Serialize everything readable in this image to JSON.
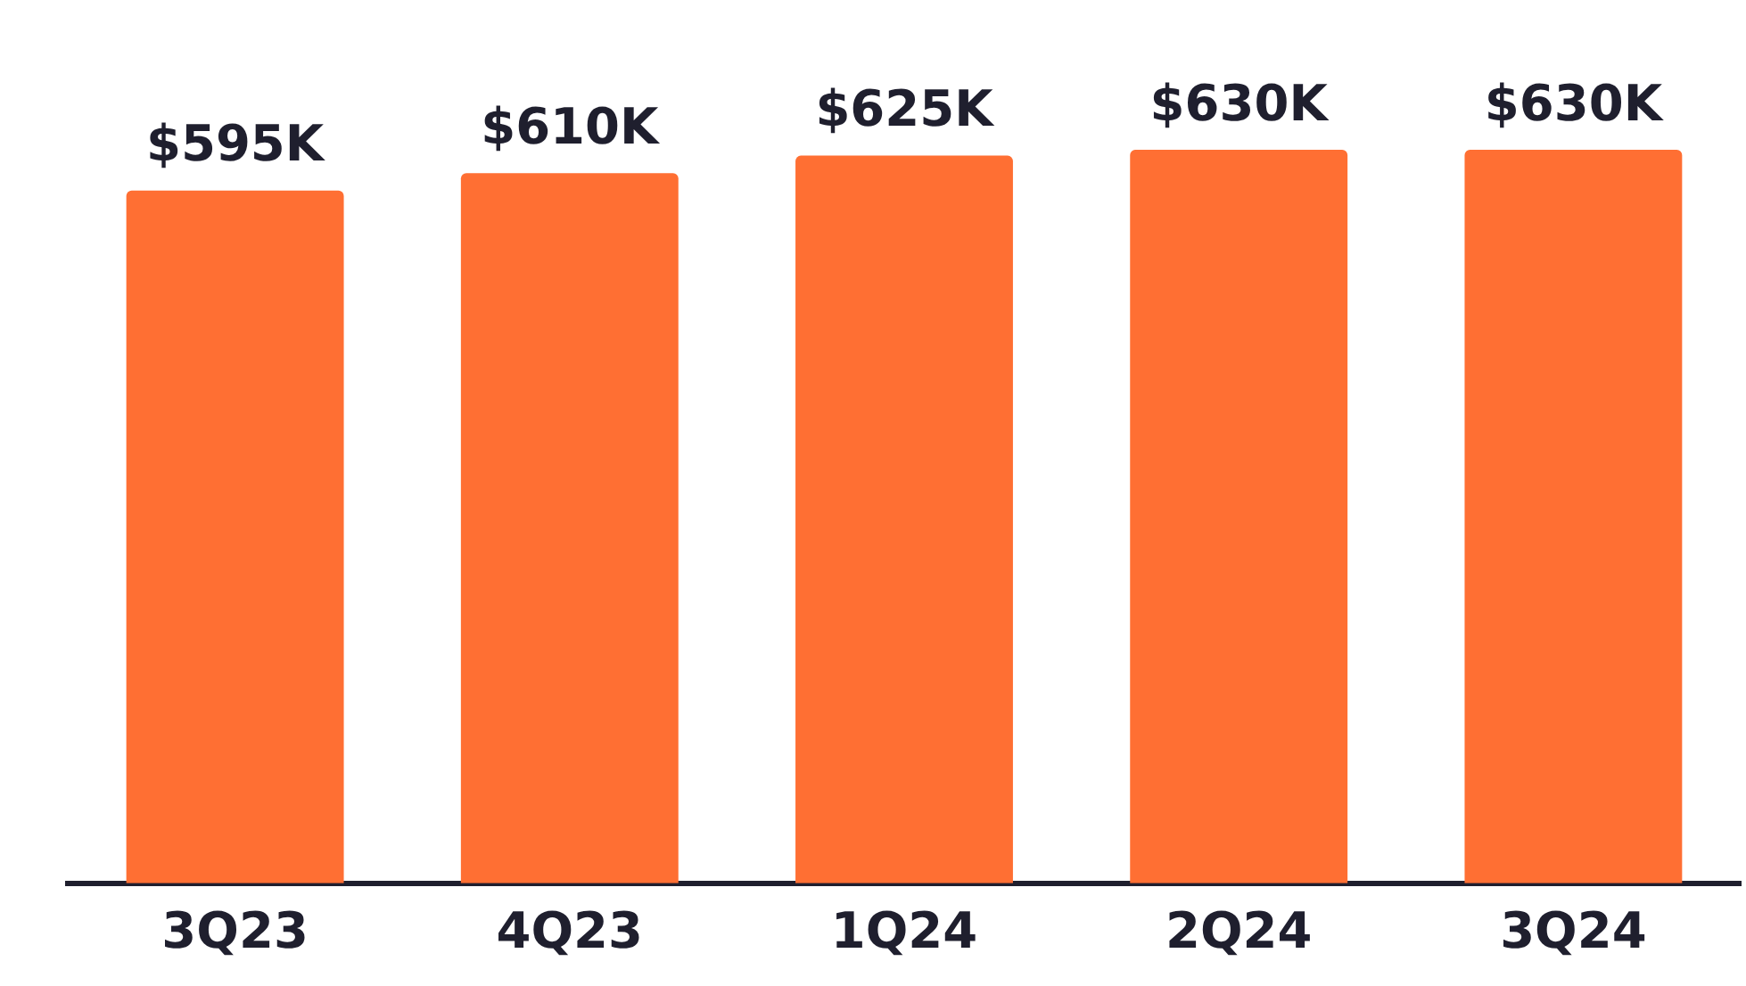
{
  "chart_data": {
    "type": "bar",
    "categories": [
      "3Q23",
      "4Q23",
      "1Q24",
      "2Q24",
      "3Q24"
    ],
    "values": [
      595,
      610,
      625,
      630,
      630
    ],
    "value_labels": [
      "$595K",
      "$610K",
      "$625K",
      "$630K",
      "$630K"
    ],
    "color": "#ff6f33",
    "grid": false,
    "legend": false
  }
}
